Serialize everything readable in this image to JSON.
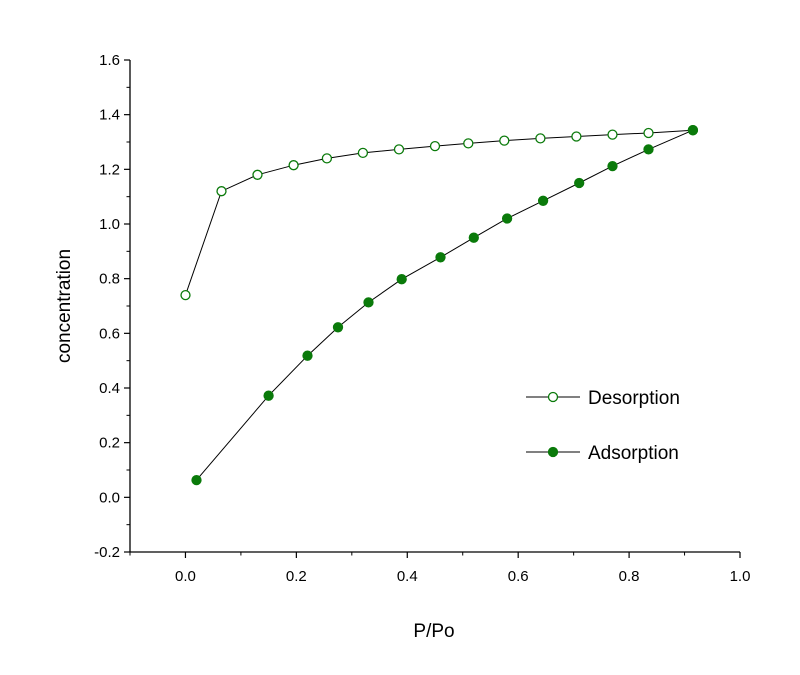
{
  "chart_data": {
    "type": "scatter",
    "title": "",
    "xlabel": "P/Po",
    "ylabel": "concentration",
    "xlim": [
      -0.1,
      1.0
    ],
    "ylim": [
      -0.2,
      1.6
    ],
    "xticks": [
      "0.0",
      "0.2",
      "0.4",
      "0.6",
      "0.8",
      "1.0"
    ],
    "yticks": [
      "-0.2",
      "0.0",
      "0.2",
      "0.4",
      "0.6",
      "0.8",
      "1.0",
      "1.2",
      "1.4",
      "1.6"
    ],
    "grid": false,
    "legend_position": "right-center",
    "colors": {
      "series": "#0a7a0a",
      "line": "#000000",
      "axis": "#000000"
    },
    "series": [
      {
        "name": "Desorption",
        "marker": "open-circle",
        "x": [
          0.0,
          0.065,
          0.13,
          0.195,
          0.255,
          0.32,
          0.385,
          0.45,
          0.51,
          0.575,
          0.64,
          0.705,
          0.77,
          0.835,
          0.915
        ],
        "y": [
          0.74,
          1.12,
          1.18,
          1.215,
          1.24,
          1.26,
          1.273,
          1.285,
          1.295,
          1.305,
          1.313,
          1.32,
          1.327,
          1.333,
          1.343
        ]
      },
      {
        "name": "Adsorption",
        "marker": "filled-circle",
        "x": [
          0.02,
          0.15,
          0.22,
          0.275,
          0.33,
          0.39,
          0.46,
          0.52,
          0.58,
          0.645,
          0.71,
          0.77,
          0.835,
          0.915
        ],
        "y": [
          0.063,
          0.372,
          0.518,
          0.622,
          0.713,
          0.798,
          0.878,
          0.95,
          1.02,
          1.085,
          1.15,
          1.212,
          1.273,
          1.343
        ]
      }
    ]
  }
}
